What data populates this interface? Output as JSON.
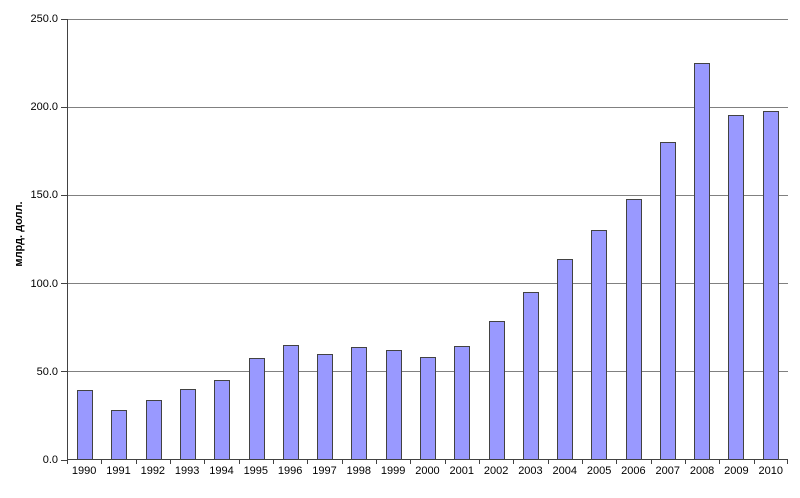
{
  "chart_data": {
    "type": "bar",
    "title": "",
    "xlabel": "",
    "ylabel": "млрд. долл.",
    "categories": [
      "1990",
      "1991",
      "1992",
      "1993",
      "1994",
      "1995",
      "1996",
      "1997",
      "1998",
      "1999",
      "2000",
      "2001",
      "2002",
      "2003",
      "2004",
      "2005",
      "2006",
      "2007",
      "2008",
      "2009",
      "2010"
    ],
    "values": [
      39,
      28,
      33.5,
      39.5,
      45,
      57.5,
      65,
      59.5,
      63.5,
      62,
      58,
      64,
      78.5,
      95,
      113.5,
      130,
      148,
      180,
      225,
      195.5,
      197.5
    ],
    "ylim": [
      0,
      250
    ],
    "yticks": [
      "0.0",
      "50.0",
      "100.0",
      "150.0",
      "200.0",
      "250.0"
    ],
    "grid": true,
    "legend": false,
    "colors": {
      "bar_fill": "#9999FF",
      "bar_border": "#424242",
      "gridline": "#808080",
      "axis": "#424242",
      "text": "#000000",
      "background": "#FFFFFF"
    }
  }
}
